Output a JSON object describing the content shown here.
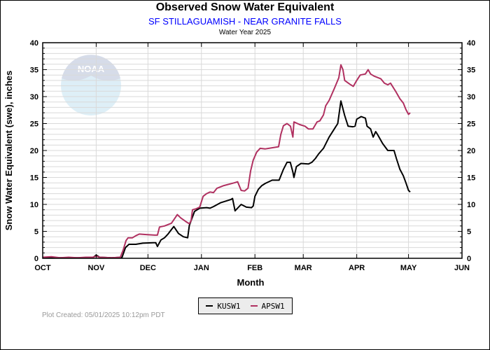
{
  "chart_data": {
    "type": "line",
    "title": "Observed Snow Water Equivalent",
    "subtitle": "SF STILLAGUAMISH - NEAR GRANITE FALLS",
    "subtitle2": "Water Year 2025",
    "xlabel": "Month",
    "ylabel": "Snow Water Equivalent (swe),  inches",
    "x_unit": "days since Oct 1",
    "xlim": [
      0,
      243
    ],
    "ylim": [
      0,
      40
    ],
    "y_ticks": [
      0,
      5,
      10,
      15,
      20,
      25,
      30,
      35,
      40
    ],
    "x_ticks": [
      {
        "label": "OCT",
        "day": 0
      },
      {
        "label": "NOV",
        "day": 31
      },
      {
        "label": "DEC",
        "day": 61
      },
      {
        "label": "JAN",
        "day": 92
      },
      {
        "label": "FEB",
        "day": 123
      },
      {
        "label": "MAR",
        "day": 151
      },
      {
        "label": "APR",
        "day": 182
      },
      {
        "label": "MAY",
        "day": 212
      },
      {
        "label": "JUN",
        "day": 243
      }
    ],
    "grid": true,
    "legend_position": "bottom-center",
    "series": [
      {
        "name": "KUSW1",
        "color": "#000000",
        "points": [
          [
            0,
            0.1
          ],
          [
            10,
            0.1
          ],
          [
            20,
            0.1
          ],
          [
            29,
            0.1
          ],
          [
            31,
            0.6
          ],
          [
            33,
            0.2
          ],
          [
            40,
            0.1
          ],
          [
            46,
            0.2
          ],
          [
            48,
            2.0
          ],
          [
            50,
            2.6
          ],
          [
            54,
            2.6
          ],
          [
            58,
            2.8
          ],
          [
            64,
            2.9
          ],
          [
            65.5,
            2.9
          ],
          [
            66.5,
            2.2
          ],
          [
            68.5,
            3.4
          ],
          [
            70.6,
            3.8
          ],
          [
            72.6,
            4.5
          ],
          [
            75,
            5.5
          ],
          [
            76,
            5.9
          ],
          [
            78.7,
            4.6
          ],
          [
            81.5,
            4.0
          ],
          [
            84,
            3.8
          ],
          [
            85,
            6.1
          ],
          [
            88,
            8.7
          ],
          [
            91,
            9.3
          ],
          [
            95,
            9.4
          ],
          [
            97,
            9.3
          ],
          [
            99,
            9.6
          ],
          [
            103,
            10.3
          ],
          [
            109,
            10.9
          ],
          [
            110,
            11.1
          ],
          [
            111.5,
            8.8
          ],
          [
            115,
            10.0
          ],
          [
            118,
            9.5
          ],
          [
            121,
            9.4
          ],
          [
            122,
            9.7
          ],
          [
            123,
            11.5
          ],
          [
            125,
            12.8
          ],
          [
            127,
            13.5
          ],
          [
            129,
            13.9
          ],
          [
            133,
            14.5
          ],
          [
            137,
            14.5
          ],
          [
            139.5,
            16.5
          ],
          [
            141.6,
            17.8
          ],
          [
            143.5,
            17.8
          ],
          [
            145,
            16.0
          ],
          [
            145.6,
            15.0
          ],
          [
            147,
            17.0
          ],
          [
            149.7,
            17.6
          ],
          [
            154,
            17.5
          ],
          [
            156,
            17.8
          ],
          [
            158,
            18.5
          ],
          [
            160,
            19.4
          ],
          [
            162.7,
            20.4
          ],
          [
            166,
            22.5
          ],
          [
            169,
            24.0
          ],
          [
            171,
            25.0
          ],
          [
            172.8,
            29.2
          ],
          [
            175,
            26.5
          ],
          [
            177,
            24.5
          ],
          [
            179.6,
            24.4
          ],
          [
            181,
            24.5
          ],
          [
            182,
            25.8
          ],
          [
            184.6,
            26.3
          ],
          [
            187,
            26.0
          ],
          [
            188,
            24.5
          ],
          [
            190,
            24.0
          ],
          [
            191.5,
            22.5
          ],
          [
            193,
            23.5
          ],
          [
            194,
            23.0
          ],
          [
            197,
            21.3
          ],
          [
            200,
            20.0
          ],
          [
            203.6,
            20.0
          ],
          [
            205,
            18.5
          ],
          [
            207,
            16.5
          ],
          [
            209,
            15.3
          ],
          [
            210.5,
            14.0
          ],
          [
            212,
            12.6
          ],
          [
            213,
            12.3
          ]
        ]
      },
      {
        "name": "APSW1",
        "color": "#b03060",
        "points": [
          [
            0,
            0.2
          ],
          [
            5,
            0.3
          ],
          [
            10,
            0.1
          ],
          [
            15,
            0.2
          ],
          [
            20,
            0.1
          ],
          [
            25,
            0.2
          ],
          [
            29,
            0.2
          ],
          [
            31,
            0.4
          ],
          [
            33,
            0.2
          ],
          [
            40,
            0.1
          ],
          [
            45,
            0.2
          ],
          [
            46.6,
            1.5
          ],
          [
            48.3,
            3.3
          ],
          [
            49.5,
            3.8
          ],
          [
            52,
            3.8
          ],
          [
            54,
            4.2
          ],
          [
            56,
            4.5
          ],
          [
            60,
            4.4
          ],
          [
            65,
            4.3
          ],
          [
            66.5,
            4.3
          ],
          [
            67.7,
            5.8
          ],
          [
            70.6,
            6.0
          ],
          [
            74.6,
            6.5
          ],
          [
            76.7,
            7.5
          ],
          [
            78,
            8.1
          ],
          [
            80,
            7.5
          ],
          [
            83,
            6.8
          ],
          [
            85,
            6.4
          ],
          [
            86,
            7.0
          ],
          [
            86.8,
            9.0
          ],
          [
            89,
            9.2
          ],
          [
            91,
            9.5
          ],
          [
            93,
            11.5
          ],
          [
            95,
            12.0
          ],
          [
            97,
            12.3
          ],
          [
            99,
            12.2
          ],
          [
            101,
            13.0
          ],
          [
            105,
            13.5
          ],
          [
            111,
            14.0
          ],
          [
            113,
            14.2
          ],
          [
            115,
            12.6
          ],
          [
            117,
            12.5
          ],
          [
            119,
            13.0
          ],
          [
            120.5,
            16.2
          ],
          [
            122,
            18.2
          ],
          [
            124,
            19.7
          ],
          [
            126,
            20.4
          ],
          [
            129,
            20.3
          ],
          [
            136.7,
            20.7
          ],
          [
            138,
            23.0
          ],
          [
            139.5,
            24.6
          ],
          [
            141.6,
            25.0
          ],
          [
            143.6,
            24.5
          ],
          [
            145,
            22.5
          ],
          [
            145.6,
            25.3
          ],
          [
            149,
            24.8
          ],
          [
            152,
            24.5
          ],
          [
            154,
            24.0
          ],
          [
            156.6,
            24.0
          ],
          [
            159,
            25.3
          ],
          [
            160.6,
            25.5
          ],
          [
            162.7,
            26.6
          ],
          [
            164,
            28.3
          ],
          [
            166,
            29.3
          ],
          [
            169,
            31.5
          ],
          [
            171.6,
            33.5
          ],
          [
            172.8,
            35.9
          ],
          [
            174,
            35.0
          ],
          [
            175,
            33.0
          ],
          [
            178,
            32.3
          ],
          [
            180,
            31.9
          ],
          [
            182,
            33.0
          ],
          [
            184,
            34.0
          ],
          [
            187,
            34.2
          ],
          [
            188.6,
            35.0
          ],
          [
            190,
            34.2
          ],
          [
            192,
            33.8
          ],
          [
            196,
            33.3
          ],
          [
            198,
            32.5
          ],
          [
            200,
            32.2
          ],
          [
            201.6,
            32.5
          ],
          [
            204.5,
            31.0
          ],
          [
            207,
            29.6
          ],
          [
            209,
            28.8
          ],
          [
            210.5,
            27.6
          ],
          [
            212,
            26.7
          ],
          [
            213,
            27.0
          ]
        ]
      }
    ]
  },
  "footer": {
    "plot_created": "Plot Created: 05/01/2025 10:12pm PDT"
  },
  "logo": {
    "text": "NOAA"
  }
}
